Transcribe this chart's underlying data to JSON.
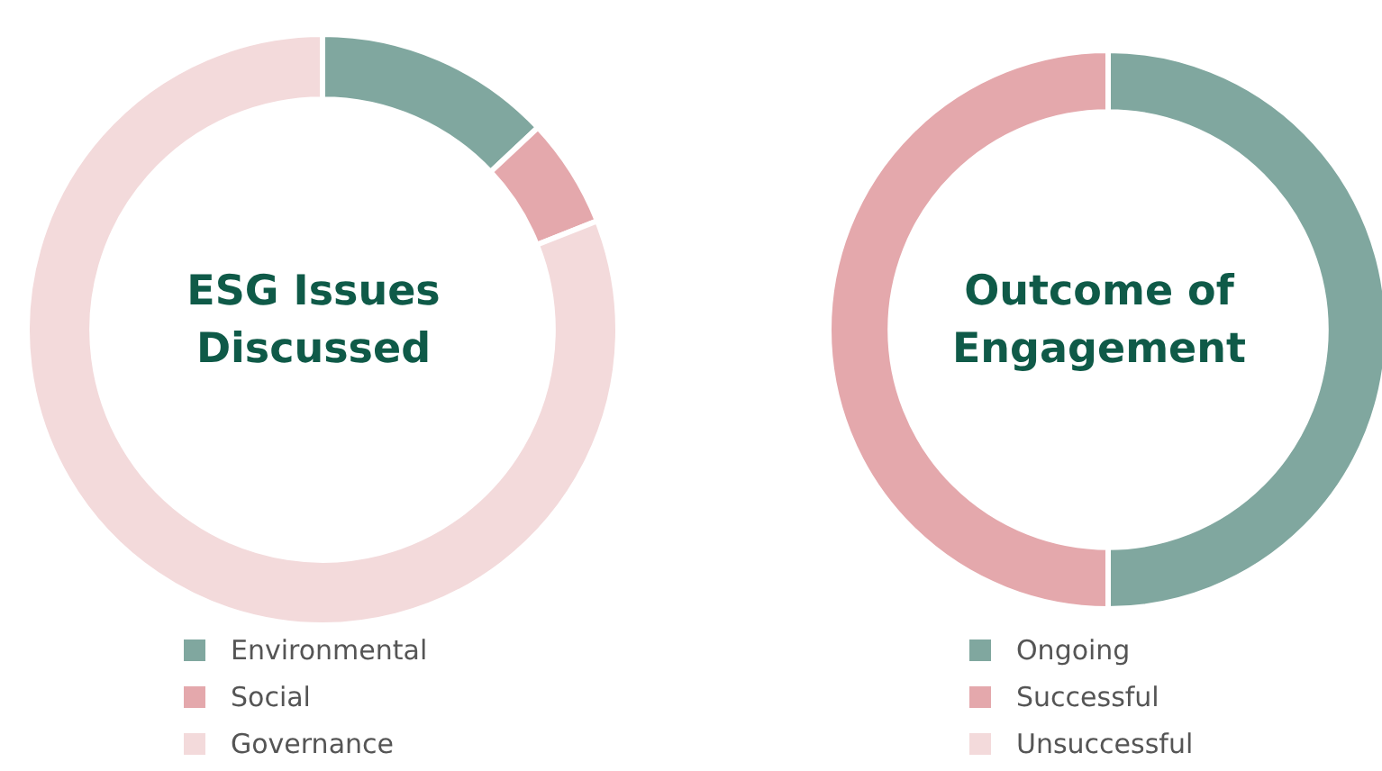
{
  "chart_data": [
    {
      "type": "donut",
      "title": "ESG Issues Discussed",
      "categories": [
        "Environmental",
        "Social",
        "Governance"
      ],
      "values": [
        13,
        6,
        81
      ],
      "colors": [
        "#80a79f",
        "#e4a8ac",
        "#f3dadb"
      ],
      "legend": "bottom"
    },
    {
      "type": "donut",
      "title": "Outcome of Engagement",
      "categories": [
        "Ongoing",
        "Successful",
        "Unsuccessful"
      ],
      "values": [
        50,
        50,
        0
      ],
      "colors": [
        "#80a79f",
        "#e4a8ac",
        "#f3dadb"
      ],
      "legend": "bottom"
    }
  ]
}
